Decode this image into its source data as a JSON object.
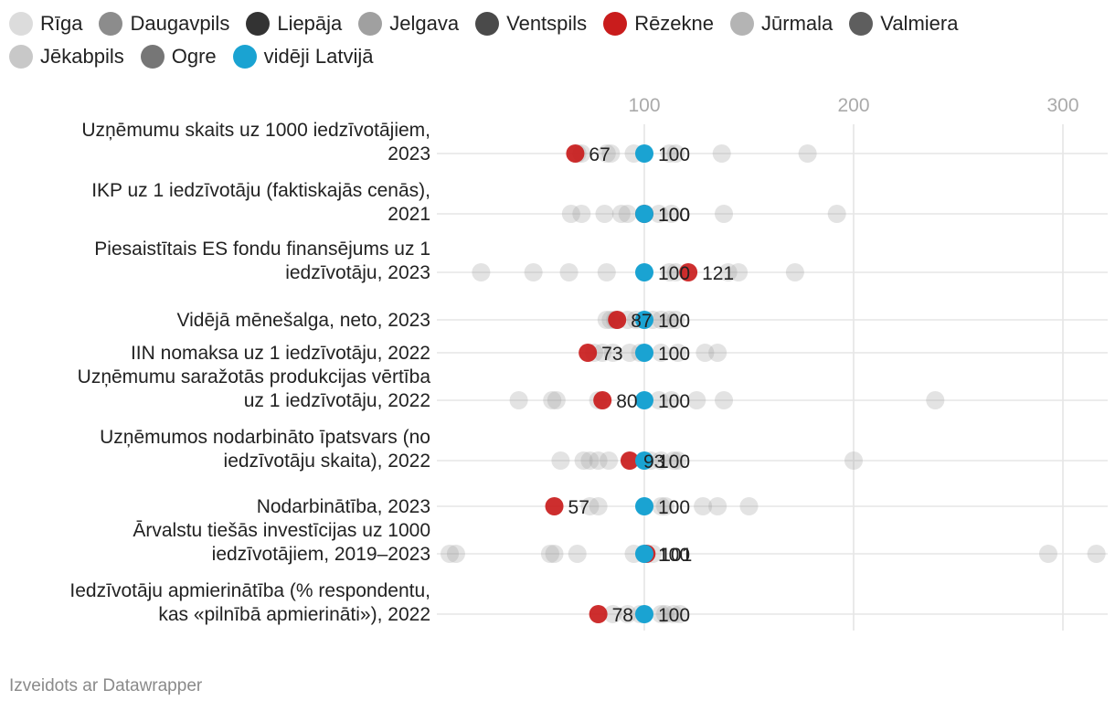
{
  "chart_data": {
    "type": "scatter",
    "title": "",
    "x_ticks": [
      100,
      200,
      300
    ],
    "xlim": [
      6,
      318
    ],
    "legend": {
      "position": "top",
      "entries": [
        {
          "name": "Rīga",
          "color": "#dcdcdc"
        },
        {
          "name": "Daugavpils",
          "color": "#8c8c8c"
        },
        {
          "name": "Liepāja",
          "color": "#333333"
        },
        {
          "name": "Jelgava",
          "color": "#a0a0a0"
        },
        {
          "name": "Ventspils",
          "color": "#4a4a4a"
        },
        {
          "name": "Rēzekne",
          "color": "#c91c1c"
        },
        {
          "name": "Jūrmala",
          "color": "#b4b4b4"
        },
        {
          "name": "Valmiera",
          "color": "#5e5e5e"
        },
        {
          "name": "Jēkabpils",
          "color": "#c8c8c8"
        },
        {
          "name": "Ogre",
          "color": "#767676"
        },
        {
          "name": "vidēji Latvijā",
          "color": "#1aa3d2"
        }
      ]
    },
    "highlight_color": "#c91c1c",
    "average_color": "#1aa3d2",
    "other_color": "#9a9a9a",
    "rows": [
      {
        "label_lines": [
          "Uzņēmumu skaits uz 1000 iedzīvotājiem,",
          "2023"
        ],
        "rezekne": 67,
        "average": 100,
        "rezekne_label": "67",
        "average_label": "100",
        "others": [
          178,
          137,
          115,
          112,
          95,
          84,
          82,
          70,
          68
        ]
      },
      {
        "label_lines": [
          "IKP uz 1 iedzīvotāju (faktiskajās cenās),",
          "2021"
        ],
        "rezekne": 100,
        "average": 100,
        "rezekne_label": "100",
        "average_label": "100",
        "others": [
          192,
          138,
          113,
          107,
          92,
          89,
          81,
          70,
          65
        ]
      },
      {
        "label_lines": [
          "Piesaistītais ES fondu finansējums uz 1",
          "iedzīvotāju, 2023"
        ],
        "rezekne": 121,
        "average": 100,
        "rezekne_label": "121",
        "average_label": "100",
        "others": [
          172,
          145,
          140,
          115,
          112,
          82,
          64,
          47,
          22
        ]
      },
      {
        "label_lines": [
          "Vidējā mēnešalga, neto, 2023"
        ],
        "rezekne": 87,
        "average": 100,
        "rezekne_label": "87",
        "average_label": "100",
        "others": [
          115,
          112,
          108,
          104,
          96,
          92,
          86,
          84,
          82
        ]
      },
      {
        "label_lines": [
          "IIN nomaksa uz 1 iedzīvotāju, 2022"
        ],
        "rezekne": 73,
        "average": 100,
        "rezekne_label": "73",
        "average_label": "100",
        "others": [
          135,
          129,
          116,
          108,
          98,
          93,
          85,
          80,
          76
        ]
      },
      {
        "label_lines": [
          "Uzņēmumu saražotās produkcijas vērtība",
          "uz 1 iedzīvotāju, 2022"
        ],
        "rezekne": 80,
        "average": 100,
        "rezekne_label": "80",
        "average_label": "100",
        "others": [
          239,
          138,
          125,
          113,
          107,
          78,
          58,
          56,
          40
        ]
      },
      {
        "label_lines": [
          "Uzņēmumos nodarbināto īpatsvars (no",
          "iedzīvotāju skaita), 2022"
        ],
        "rezekne": 93,
        "average": 100,
        "rezekne_label": "93",
        "average_label": "100",
        "others": [
          200,
          116,
          114,
          108,
          103,
          83,
          78,
          74,
          71,
          60
        ]
      },
      {
        "label_lines": [
          "Nodarbinātība, 2023"
        ],
        "rezekne": 57,
        "average": 100,
        "rezekne_label": "57",
        "average_label": "100",
        "others": [
          150,
          135,
          128,
          110,
          108,
          78,
          74
        ]
      },
      {
        "label_lines": [
          "Ārvalstu tiešās investīcijas uz 1000",
          "iedzīvotājiem, 2019–2023"
        ],
        "rezekne": 101,
        "average": 100,
        "rezekne_label": "101",
        "average_label": "100",
        "others": [
          316,
          293,
          104,
          100,
          95,
          68,
          57,
          55,
          10,
          7
        ]
      },
      {
        "label_lines": [
          "Iedzīvotāju apmierinātība (% respondentu,",
          "kas «pilnībā apmierināti»), 2022"
        ],
        "rezekne": 78,
        "average": 100,
        "rezekne_label": "78",
        "average_label": "100",
        "others": [
          117,
          114,
          110,
          108,
          98,
          92,
          85
        ]
      }
    ]
  },
  "footer": "Izveidots ar Datawrapper"
}
